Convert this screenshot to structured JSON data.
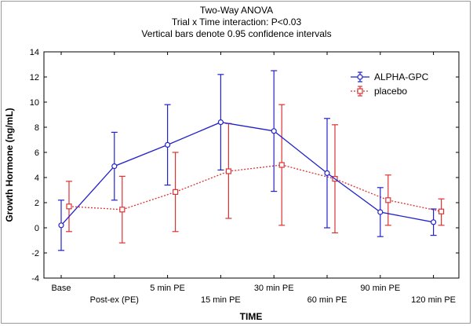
{
  "chart_data": {
    "type": "line",
    "title": "Two-Way ANOVA",
    "subtitle_lines": [
      "Trial x Time interaction: P<0.03",
      "Vertical bars denote 0.95 confidence intervals"
    ],
    "xlabel": "TIME",
    "ylabel": "Growth Hormone (ng/mL)",
    "categories": [
      "Base",
      "Post-ex (PE)",
      "5 min PE",
      "15 min PE",
      "30 min PE",
      "60 min PE",
      "90 min PE",
      "120 min PE"
    ],
    "ylim": [
      -4,
      14
    ],
    "yticks": [
      -4,
      -2,
      0,
      2,
      4,
      6,
      8,
      10,
      12,
      14
    ],
    "grid": false,
    "legend_position": "top-right",
    "series": [
      {
        "name": "ALPHA-GPC",
        "color": "#2222cc",
        "line_style": "solid",
        "marker": "circle",
        "values": [
          0.2,
          4.9,
          6.6,
          8.4,
          7.7,
          4.35,
          1.25,
          0.45
        ],
        "ci_low": [
          -1.8,
          2.2,
          3.4,
          4.6,
          2.9,
          0.0,
          -0.7,
          -0.6
        ],
        "ci_high": [
          2.2,
          7.6,
          9.8,
          12.2,
          12.5,
          8.7,
          3.2,
          1.5
        ]
      },
      {
        "name": "placebo",
        "color": "#dd3333",
        "line_style": "dotted",
        "marker": "square",
        "values": [
          1.7,
          1.45,
          2.85,
          4.5,
          5.0,
          3.9,
          2.2,
          1.3
        ],
        "ci_low": [
          -0.3,
          -1.2,
          -0.3,
          0.75,
          0.2,
          -0.4,
          0.2,
          0.2
        ],
        "ci_high": [
          3.7,
          4.1,
          6.0,
          8.3,
          9.8,
          8.2,
          4.2,
          2.3
        ]
      }
    ]
  }
}
